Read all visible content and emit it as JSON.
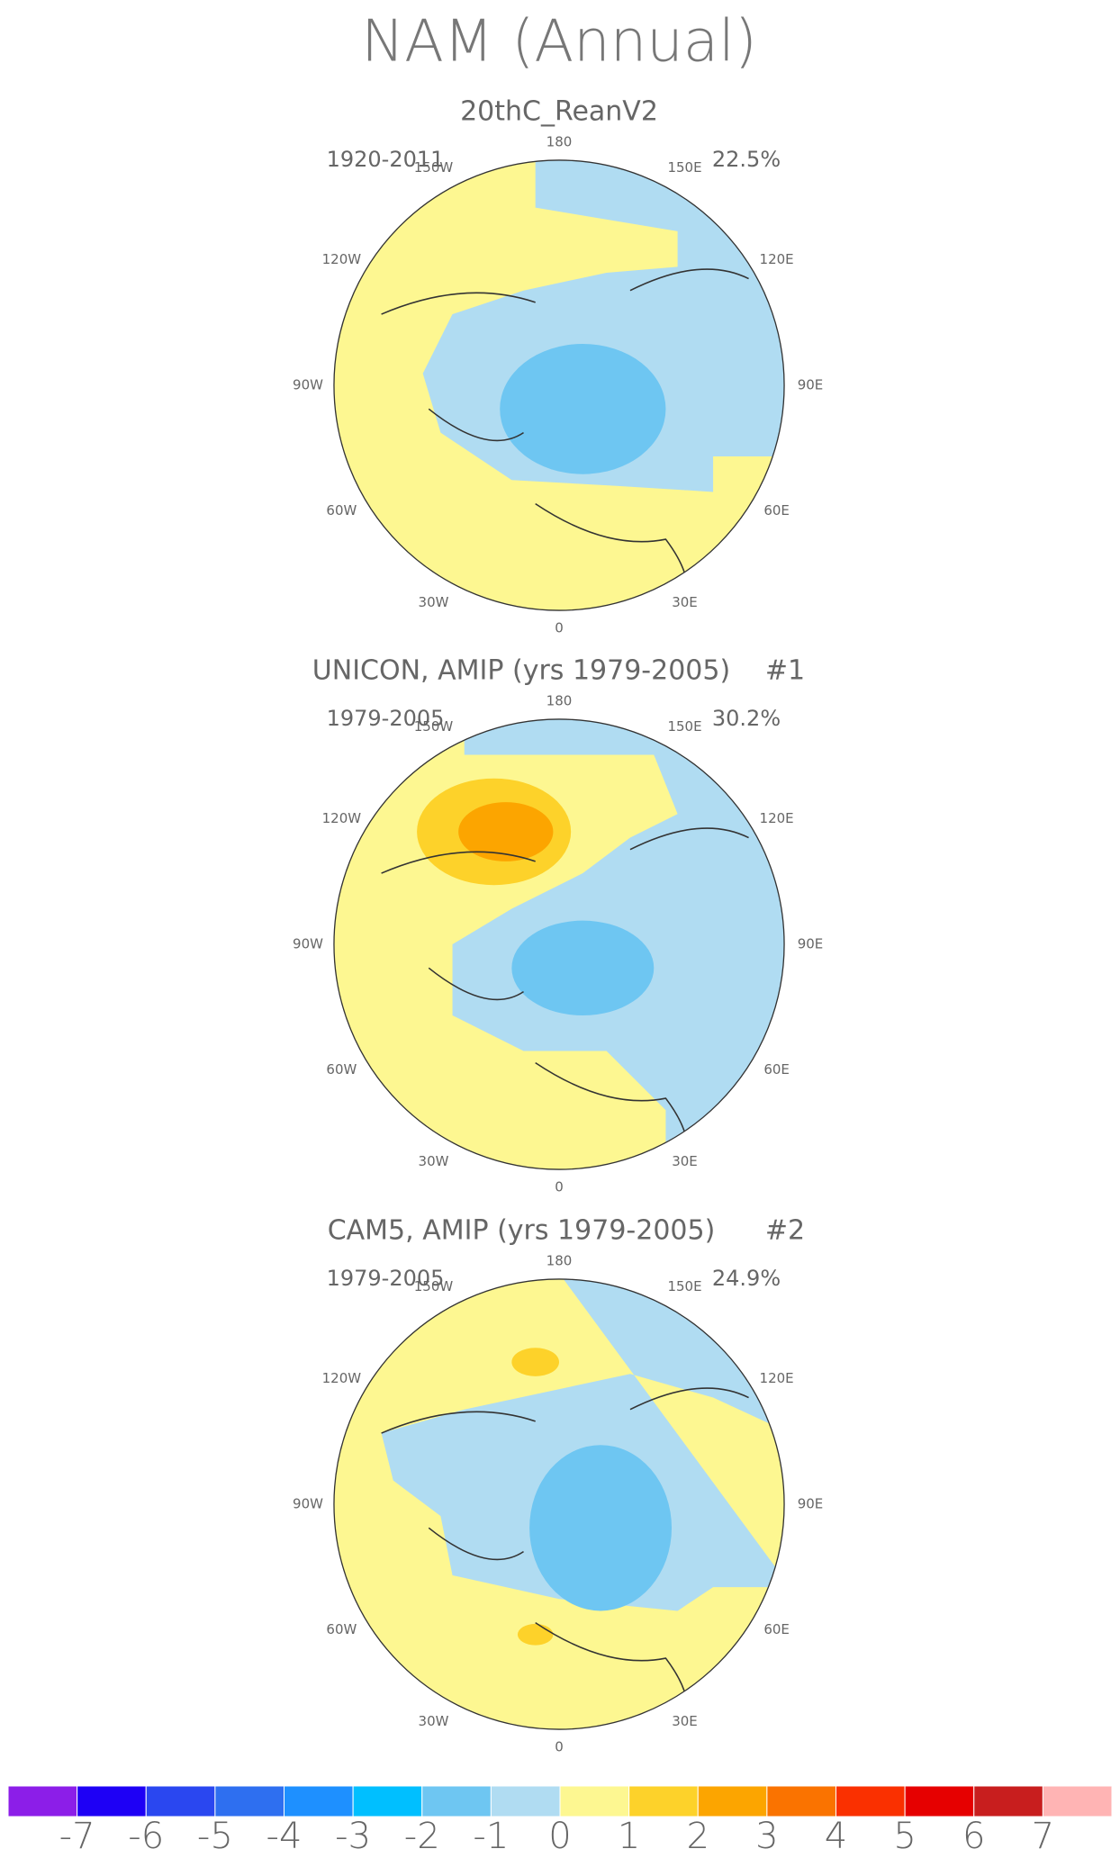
{
  "title": "NAM (Annual)",
  "panels": [
    {
      "title": "20thC_ReanV2",
      "period": "1920-2011",
      "variance": "22.5%"
    },
    {
      "title": "UNICON, AMIP (yrs 1979-2005)",
      "period": "1979-2005",
      "variance": "30.2%",
      "tag": "#1"
    },
    {
      "title": "CAM5, AMIP (yrs 1979-2005)",
      "period": "1979-2005",
      "variance": "24.9%",
      "tag": "#2"
    }
  ],
  "lon_labels": [
    "0",
    "30E",
    "60E",
    "90E",
    "120E",
    "150E",
    "180",
    "150W",
    "120W",
    "90W",
    "60W",
    "30W"
  ],
  "colorbar": {
    "levels": [
      -7,
      -6,
      -5,
      -4,
      -3,
      -2,
      -1,
      0,
      1,
      2,
      3,
      4,
      5,
      6,
      7
    ],
    "colors": [
      "#8c1ee8",
      "#1e00f5",
      "#2a47f0",
      "#2e6ff0",
      "#1e90ff",
      "#00bfff",
      "#6ec6f2",
      "#b0dcf2",
      "#fdf791",
      "#fdd22a",
      "#fca500",
      "#fa7300",
      "#fa3000",
      "#e60000",
      "#c81e1e",
      "#ffb4b4"
    ]
  }
}
